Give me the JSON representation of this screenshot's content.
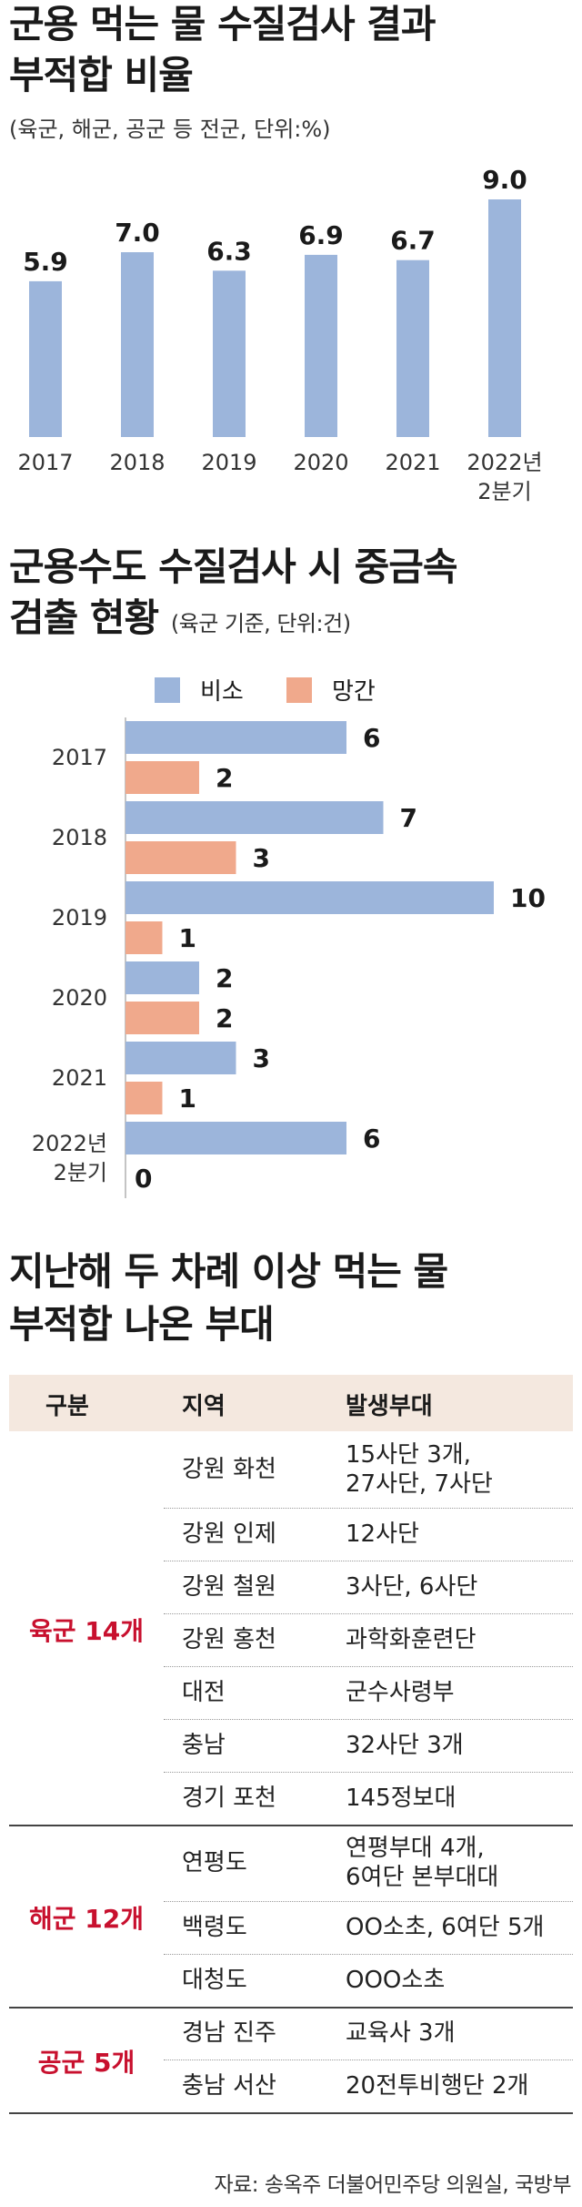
{
  "chart_data": [
    {
      "type": "bar",
      "title": "군용 먹는 물 수질검사 결과\n부적합 비율",
      "subtitle": "(육군, 해군, 공군 등 전군, 단위:%)",
      "categories": [
        "2017",
        "2018",
        "2019",
        "2020",
        "2021",
        "2022년\n2분기"
      ],
      "values": [
        5.9,
        7.0,
        6.3,
        6.9,
        6.7,
        9.0
      ],
      "value_labels": [
        "5.9",
        "7.0",
        "6.3",
        "6.9",
        "6.7",
        "9.0"
      ],
      "ylim": [
        0,
        10
      ],
      "color": "#9cb5db"
    },
    {
      "type": "bar",
      "orientation": "horizontal",
      "title": "군용수도 수질검사 시 중금속\n검출 현황",
      "subtitle": "(육군 기준, 단위:건)",
      "categories": [
        "2017",
        "2018",
        "2019",
        "2020",
        "2021",
        "2022년\n2분기"
      ],
      "series": [
        {
          "name": "비소",
          "values": [
            6,
            7,
            10,
            2,
            3,
            6
          ],
          "color": "#9cb5db"
        },
        {
          "name": "망간",
          "values": [
            2,
            3,
            1,
            2,
            1,
            0
          ],
          "color": "#f0a98c"
        }
      ],
      "xlim": [
        0,
        10
      ],
      "legend": "top"
    }
  ],
  "table": {
    "title_line1": "지난해 두 차례 이상 먹는 물",
    "title_line2": "부적합 나온 부대",
    "headers": [
      "구분",
      "지역",
      "발생부대"
    ],
    "groups": [
      {
        "label": "육군 14개",
        "rows": [
          {
            "region": "강원 화천",
            "units": [
              "15사단 3개,",
              "27사단, 7사단"
            ]
          },
          {
            "region": "강원 인제",
            "units": [
              "12사단"
            ]
          },
          {
            "region": "강원 철원",
            "units": [
              "3사단, 6사단"
            ]
          },
          {
            "region": "강원 홍천",
            "units": [
              "과학화훈련단"
            ]
          },
          {
            "region": "대전",
            "units": [
              "군수사령부"
            ]
          },
          {
            "region": "충남",
            "units": [
              "32사단 3개"
            ]
          },
          {
            "region": "경기 포천",
            "units": [
              "145정보대"
            ]
          }
        ]
      },
      {
        "label": "해군 12개",
        "rows": [
          {
            "region": "연평도",
            "units": [
              "연평부대 4개,",
              "6여단 본부대대"
            ]
          },
          {
            "region": "백령도",
            "units": [
              "OO소초, 6여단 5개"
            ]
          },
          {
            "region": "대청도",
            "units": [
              "OOO소초"
            ]
          }
        ]
      },
      {
        "label": "공군 5개",
        "rows": [
          {
            "region": "경남 진주",
            "units": [
              "교육사 3개"
            ]
          },
          {
            "region": "충남 서산",
            "units": [
              "20전투비행단 2개"
            ]
          }
        ]
      }
    ]
  },
  "source": "자료: 송옥주 더불어민주당 의원실, 국방부"
}
